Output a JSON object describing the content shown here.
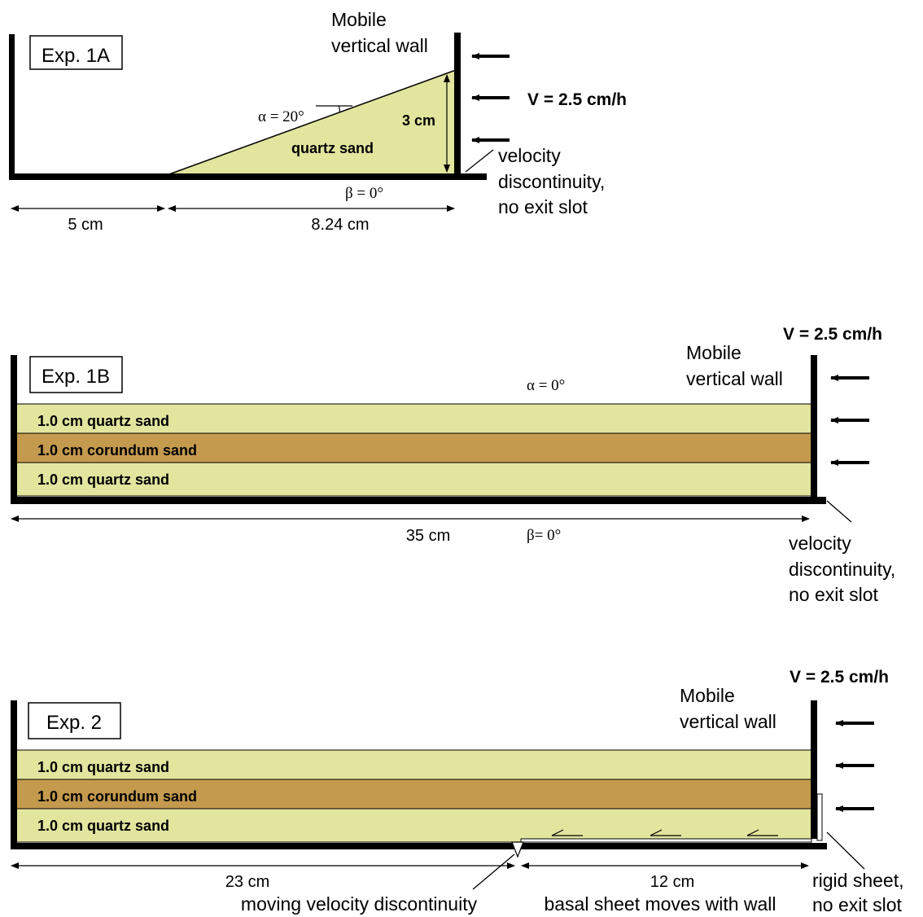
{
  "colors": {
    "quartz": "#e2e59e",
    "corundum": "#c49a4e",
    "ink": "#000000"
  },
  "exp1a": {
    "box_label": "Exp. 1A",
    "wall_label_1": "Mobile",
    "wall_label_2": "vertical wall",
    "velocity": "V = 2.5 cm/h",
    "alpha": "α = 20°",
    "height": "3 cm",
    "wedge": "quartz sand",
    "beta": "β = 0°",
    "disc_1": "velocity",
    "disc_2": "discontinuity,",
    "disc_3": "no exit slot",
    "dim_left": "5 cm",
    "dim_right": "8.24 cm"
  },
  "exp1b": {
    "box_label": "Exp. 1B",
    "velocity": "V = 2.5 cm/h",
    "wall_label_1": "Mobile",
    "wall_label_2": "vertical wall",
    "alpha": "α = 0°",
    "layers": [
      "1.0 cm quartz sand",
      "1.0 cm corundum sand",
      "1.0 cm quartz sand"
    ],
    "dim": "35 cm",
    "beta": "β= 0°",
    "disc_1": "velocity",
    "disc_2": "discontinuity,",
    "disc_3": "no exit slot"
  },
  "exp2": {
    "box_label": "Exp. 2",
    "velocity": "V = 2.5 cm/h",
    "wall_label_1": "Mobile",
    "wall_label_2": "vertical wall",
    "layers": [
      "1.0 cm quartz sand",
      "1.0 cm corundum sand",
      "1.0 cm quartz sand"
    ],
    "dim_left": "23 cm",
    "dim_left_note": "moving velocity discontinuity",
    "dim_right": "12 cm",
    "dim_right_note": "basal sheet moves with wall",
    "sheet_1": "rigid sheet,",
    "sheet_2": "no exit slot"
  }
}
